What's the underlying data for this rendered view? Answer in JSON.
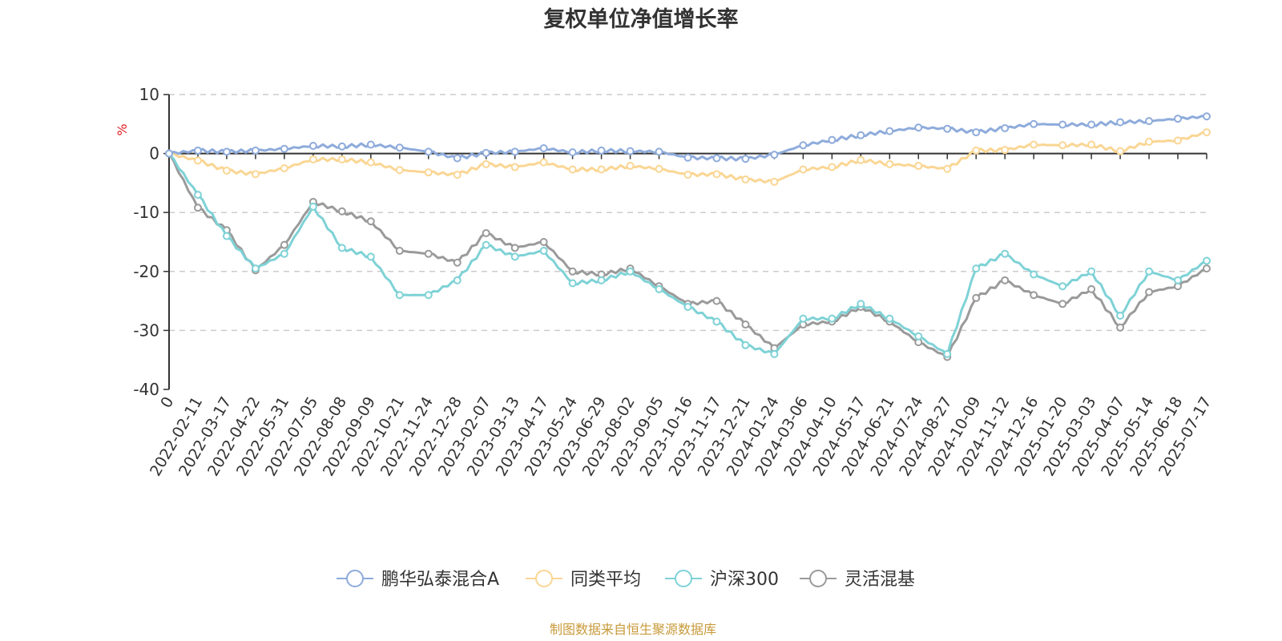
{
  "chart_data": {
    "type": "line",
    "title": "复权单位净值增长率",
    "ylabel": "%",
    "ylim": [
      -40,
      10
    ],
    "yticks": [
      "10",
      "0",
      "-10",
      "-20",
      "-30",
      "-40"
    ],
    "grid": true,
    "legend_position": "bottom",
    "source_note": "制图数据来自恒生聚源数据库",
    "categories": [
      "0",
      "2022-02-11",
      "2022-03-17",
      "2022-04-22",
      "2022-05-31",
      "2022-07-05",
      "2022-08-08",
      "2022-09-09",
      "2022-10-21",
      "2022-11-24",
      "2022-12-28",
      "2023-02-07",
      "2023-03-13",
      "2023-04-17",
      "2023-05-24",
      "2023-06-29",
      "2023-08-02",
      "2023-09-05",
      "2023-10-16",
      "2023-11-17",
      "2023-12-21",
      "2024-01-24",
      "2024-03-06",
      "2024-04-10",
      "2024-05-17",
      "2024-06-21",
      "2024-07-24",
      "2024-08-27",
      "2024-10-09",
      "2024-11-12",
      "2024-12-16",
      "2025-01-20",
      "2025-03-03",
      "2025-04-07",
      "2025-05-14",
      "2025-06-18",
      "2025-07-17"
    ],
    "series": [
      {
        "name": "鹏华弘泰混合A",
        "color": "#8eabdb",
        "values": [
          0,
          0.5,
          0.3,
          0.5,
          0.8,
          1.3,
          1.2,
          1.5,
          1.0,
          0.3,
          -0.8,
          0.1,
          0.3,
          0.9,
          0.2,
          0.5,
          0.4,
          0.3,
          -0.7,
          -0.8,
          -0.9,
          -0.2,
          1.4,
          2.3,
          3.1,
          3.8,
          4.4,
          4.2,
          3.6,
          4.3,
          5.0,
          4.9,
          4.9,
          5.3,
          5.5,
          5.9,
          6.3
        ]
      },
      {
        "name": "同类平均",
        "color": "#fad694",
        "values": [
          0,
          -1.2,
          -2.9,
          -3.5,
          -2.5,
          -1.0,
          -1.0,
          -1.5,
          -2.8,
          -3.2,
          -3.6,
          -1.8,
          -2.3,
          -1.5,
          -2.7,
          -2.7,
          -2.1,
          -2.6,
          -3.6,
          -3.5,
          -4.4,
          -4.8,
          -2.7,
          -2.3,
          -1.1,
          -1.8,
          -2.1,
          -2.6,
          0.5,
          0.6,
          1.5,
          1.4,
          1.5,
          0.4,
          2.0,
          2.2,
          3.6
        ]
      },
      {
        "name": "沪深300",
        "color": "#7ed2d6",
        "values": [
          0,
          -7.0,
          -14.0,
          -19.5,
          -17.0,
          -9.0,
          -16.0,
          -17.5,
          -24.0,
          -24.0,
          -21.5,
          -15.5,
          -17.5,
          -16.5,
          -22.0,
          -21.5,
          -20.0,
          -23.0,
          -26.0,
          -28.5,
          -32.5,
          -34.0,
          -28.0,
          -28.0,
          -25.5,
          -28.0,
          -31.0,
          -34.0,
          -19.5,
          -17.0,
          -20.5,
          -22.5,
          -20.0,
          -27.5,
          -20.0,
          -21.5,
          -18.2
        ]
      },
      {
        "name": "灵活混基",
        "color": "#9a9a9a",
        "values": [
          0,
          -9.2,
          -13.0,
          -19.8,
          -15.5,
          -8.2,
          -9.8,
          -11.5,
          -16.5,
          -17.0,
          -18.5,
          -13.5,
          -16.0,
          -15.0,
          -20.0,
          -20.5,
          -19.5,
          -22.5,
          -25.5,
          -25.0,
          -29.0,
          -33.0,
          -29.0,
          -28.5,
          -26.0,
          -28.5,
          -32.0,
          -34.5,
          -24.5,
          -21.5,
          -24.0,
          -25.5,
          -23.0,
          -29.5,
          -23.5,
          -22.5,
          -19.5
        ]
      }
    ]
  }
}
